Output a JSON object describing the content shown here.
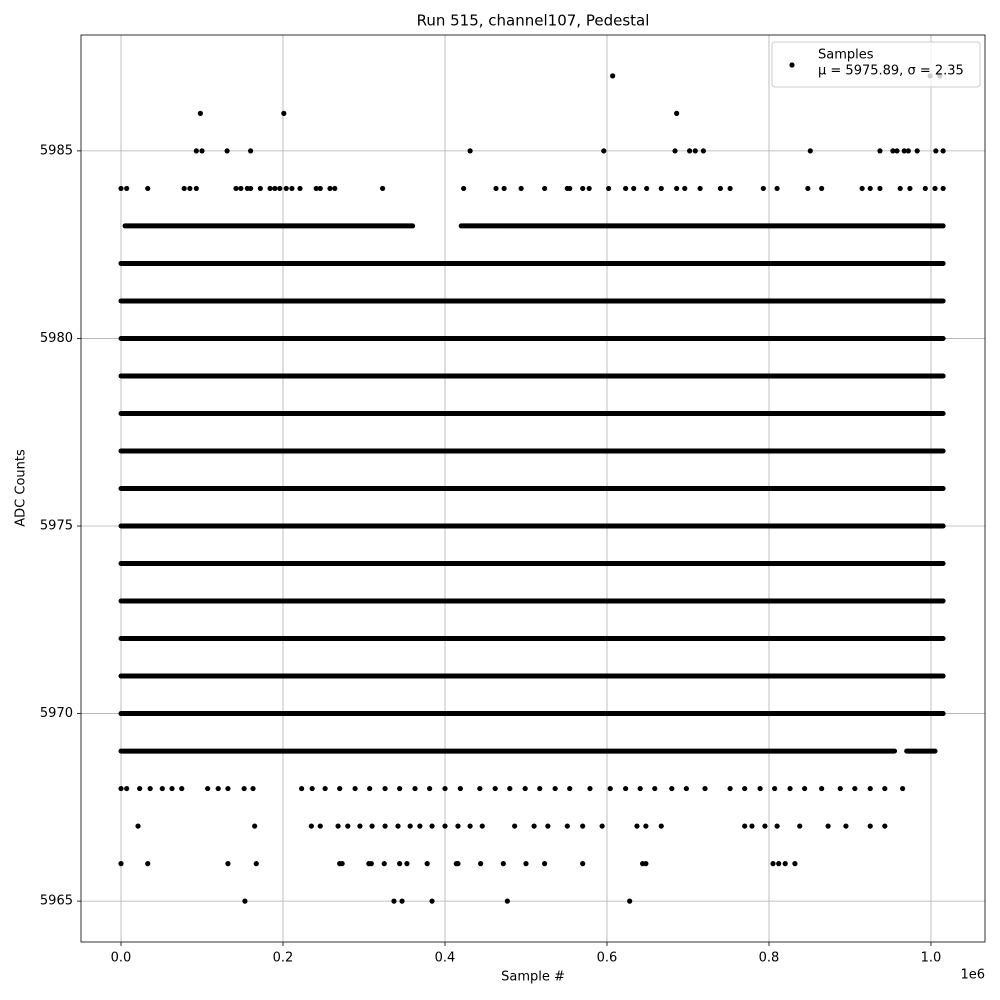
{
  "chart_data": {
    "type": "scatter",
    "title": "Run 515, channel107, Pedestal",
    "xlabel": "Sample #",
    "ylabel": "ADC Counts",
    "x_offset_label": "1e6",
    "xlim": [
      -0.0494,
      1.0667
    ],
    "ylim": [
      5963.91,
      5988.09
    ],
    "xticks": [
      {
        "value": 0,
        "label": "0.0"
      },
      {
        "value": 0.2,
        "label": "0.2"
      },
      {
        "value": 0.4,
        "label": "0.4"
      },
      {
        "value": 0.6,
        "label": "0.6"
      },
      {
        "value": 0.8,
        "label": "0.8"
      },
      {
        "value": 1.0,
        "label": "1.0"
      }
    ],
    "yticks": [
      5965,
      5970,
      5975,
      5980,
      5985
    ],
    "grid": true,
    "legend": "upper right",
    "series": [
      {
        "name": "Samples",
        "legend_note": "μ = 5975.89, σ = 2.35",
        "color": "#000000",
        "x": [
          0.607,
          0.999,
          1.011,
          0.098,
          0.201,
          0.686,
          0.093,
          0.1,
          0.131,
          0.16,
          0.431,
          0.596,
          0.684,
          0.702,
          0.709,
          0.719,
          0.851,
          0.937,
          0.953,
          0.958,
          0.967,
          0.972,
          0.983,
          1.006,
          1.015,
          0,
          0.007,
          0.033,
          0.078,
          0.085,
          0.093,
          0.142,
          0.148,
          0.156,
          0.16,
          0.172,
          0.184,
          0.19,
          0.196,
          0.204,
          0.211,
          0.221,
          0.241,
          0.246,
          0.258,
          0.264,
          0.323,
          0.423,
          0.463,
          0.473,
          0.494,
          0.523,
          0.551,
          0.554,
          0.57,
          0.578,
          0.602,
          0.623,
          0.633,
          0.649,
          0.667,
          0.686,
          0.696,
          0.715,
          0.74,
          0.752,
          0.793,
          0.81,
          0.848,
          0.865,
          0.915,
          0.925,
          0.937,
          0.962,
          0.974,
          0.993,
          1.005,
          1.015,
          0,
          0.007,
          0.023,
          0.036,
          0.051,
          0.063,
          0.075,
          0.107,
          0.12,
          0.132,
          0.152,
          0.163,
          0.223,
          0.236,
          0.252,
          0.27,
          0.289,
          0.307,
          0.326,
          0.344,
          0.363,
          0.381,
          0.4,
          0.419,
          0.443,
          0.462,
          0.48,
          0.499,
          0.517,
          0.536,
          0.554,
          0.579,
          0.604,
          0.623,
          0.641,
          0.659,
          0.68,
          0.698,
          0.721,
          0.752,
          0.77,
          0.789,
          0.807,
          0.826,
          0.844,
          0.865,
          0.888,
          0.906,
          0.925,
          0.943,
          0.965,
          0.021,
          0.165,
          0.235,
          0.246,
          0.268,
          0.28,
          0.295,
          0.31,
          0.326,
          0.342,
          0.357,
          0.369,
          0.384,
          0.4,
          0.416,
          0.431,
          0.446,
          0.486,
          0.51,
          0.527,
          0.551,
          0.57,
          0.594,
          0.637,
          0.648,
          0.667,
          0.77,
          0.779,
          0.795,
          0.81,
          0.838,
          0.873,
          0.895,
          0.925,
          0.943,
          0,
          0.033,
          0.132,
          0.167,
          0.27,
          0.273,
          0.306,
          0.309,
          0.325,
          0.344,
          0.353,
          0.378,
          0.414,
          0.416,
          0.444,
          0.472,
          0.5,
          0.523,
          0.57,
          0.644,
          0.648,
          0.805,
          0.812,
          0.82,
          0.832,
          0.153,
          0.337,
          0.347,
          0.384,
          0.477,
          0.628
        ],
        "y": [
          5987,
          5987,
          5987,
          5986,
          5986,
          5986,
          5985,
          5985,
          5985,
          5985,
          5985,
          5985,
          5985,
          5985,
          5985,
          5985,
          5985,
          5985,
          5985,
          5985,
          5985,
          5985,
          5985,
          5985,
          5985,
          5984,
          5984,
          5984,
          5984,
          5984,
          5984,
          5984,
          5984,
          5984,
          5984,
          5984,
          5984,
          5984,
          5984,
          5984,
          5984,
          5984,
          5984,
          5984,
          5984,
          5984,
          5984,
          5984,
          5984,
          5984,
          5984,
          5984,
          5984,
          5984,
          5984,
          5984,
          5984,
          5984,
          5984,
          5984,
          5984,
          5984,
          5984,
          5984,
          5984,
          5984,
          5984,
          5984,
          5984,
          5984,
          5984,
          5984,
          5984,
          5984,
          5984,
          5984,
          5984,
          5984,
          5968,
          5968,
          5968,
          5968,
          5968,
          5968,
          5968,
          5968,
          5968,
          5968,
          5968,
          5968,
          5968,
          5968,
          5968,
          5968,
          5968,
          5968,
          5968,
          5968,
          5968,
          5968,
          5968,
          5968,
          5968,
          5968,
          5968,
          5968,
          5968,
          5968,
          5968,
          5968,
          5968,
          5968,
          5968,
          5968,
          5968,
          5968,
          5968,
          5968,
          5968,
          5968,
          5968,
          5968,
          5968,
          5968,
          5968,
          5968,
          5968,
          5968,
          5968,
          5967,
          5967,
          5967,
          5967,
          5967,
          5967,
          5967,
          5967,
          5967,
          5967,
          5967,
          5967,
          5967,
          5967,
          5967,
          5967,
          5967,
          5967,
          5967,
          5967,
          5967,
          5967,
          5967,
          5967,
          5967,
          5967,
          5967,
          5967,
          5967,
          5967,
          5967,
          5967,
          5967,
          5967,
          5967,
          5966,
          5966,
          5966,
          5966,
          5966,
          5966,
          5966,
          5966,
          5966,
          5966,
          5966,
          5966,
          5966,
          5966,
          5966,
          5966,
          5966,
          5966,
          5966,
          5966,
          5966,
          5966,
          5966,
          5966,
          5966,
          5965,
          5965,
          5965,
          5965,
          5965,
          5965
        ]
      }
    ],
    "dense_levels": [
      {
        "y": 5969,
        "x_ranges": [
          [
            0,
            0.955
          ],
          [
            0.97,
            1.005
          ]
        ]
      },
      {
        "y": 5970,
        "x_ranges": [
          [
            0,
            1.015
          ]
        ]
      },
      {
        "y": 5971,
        "x_ranges": [
          [
            0,
            1.015
          ]
        ]
      },
      {
        "y": 5972,
        "x_ranges": [
          [
            0,
            1.015
          ]
        ]
      },
      {
        "y": 5973,
        "x_ranges": [
          [
            0,
            1.015
          ]
        ]
      },
      {
        "y": 5974,
        "x_ranges": [
          [
            0,
            1.015
          ]
        ]
      },
      {
        "y": 5975,
        "x_ranges": [
          [
            0,
            1.015
          ]
        ]
      },
      {
        "y": 5976,
        "x_ranges": [
          [
            0,
            1.015
          ]
        ]
      },
      {
        "y": 5977,
        "x_ranges": [
          [
            0,
            1.015
          ]
        ]
      },
      {
        "y": 5978,
        "x_ranges": [
          [
            0,
            1.015
          ]
        ]
      },
      {
        "y": 5979,
        "x_ranges": [
          [
            0,
            1.015
          ]
        ]
      },
      {
        "y": 5980,
        "x_ranges": [
          [
            0,
            1.015
          ]
        ]
      },
      {
        "y": 5981,
        "x_ranges": [
          [
            0,
            1.015
          ]
        ]
      },
      {
        "y": 5982,
        "x_ranges": [
          [
            0,
            1.015
          ]
        ]
      },
      {
        "y": 5983,
        "x_ranges": [
          [
            0.005,
            0.36
          ],
          [
            0.42,
            1.015
          ]
        ]
      }
    ]
  }
}
